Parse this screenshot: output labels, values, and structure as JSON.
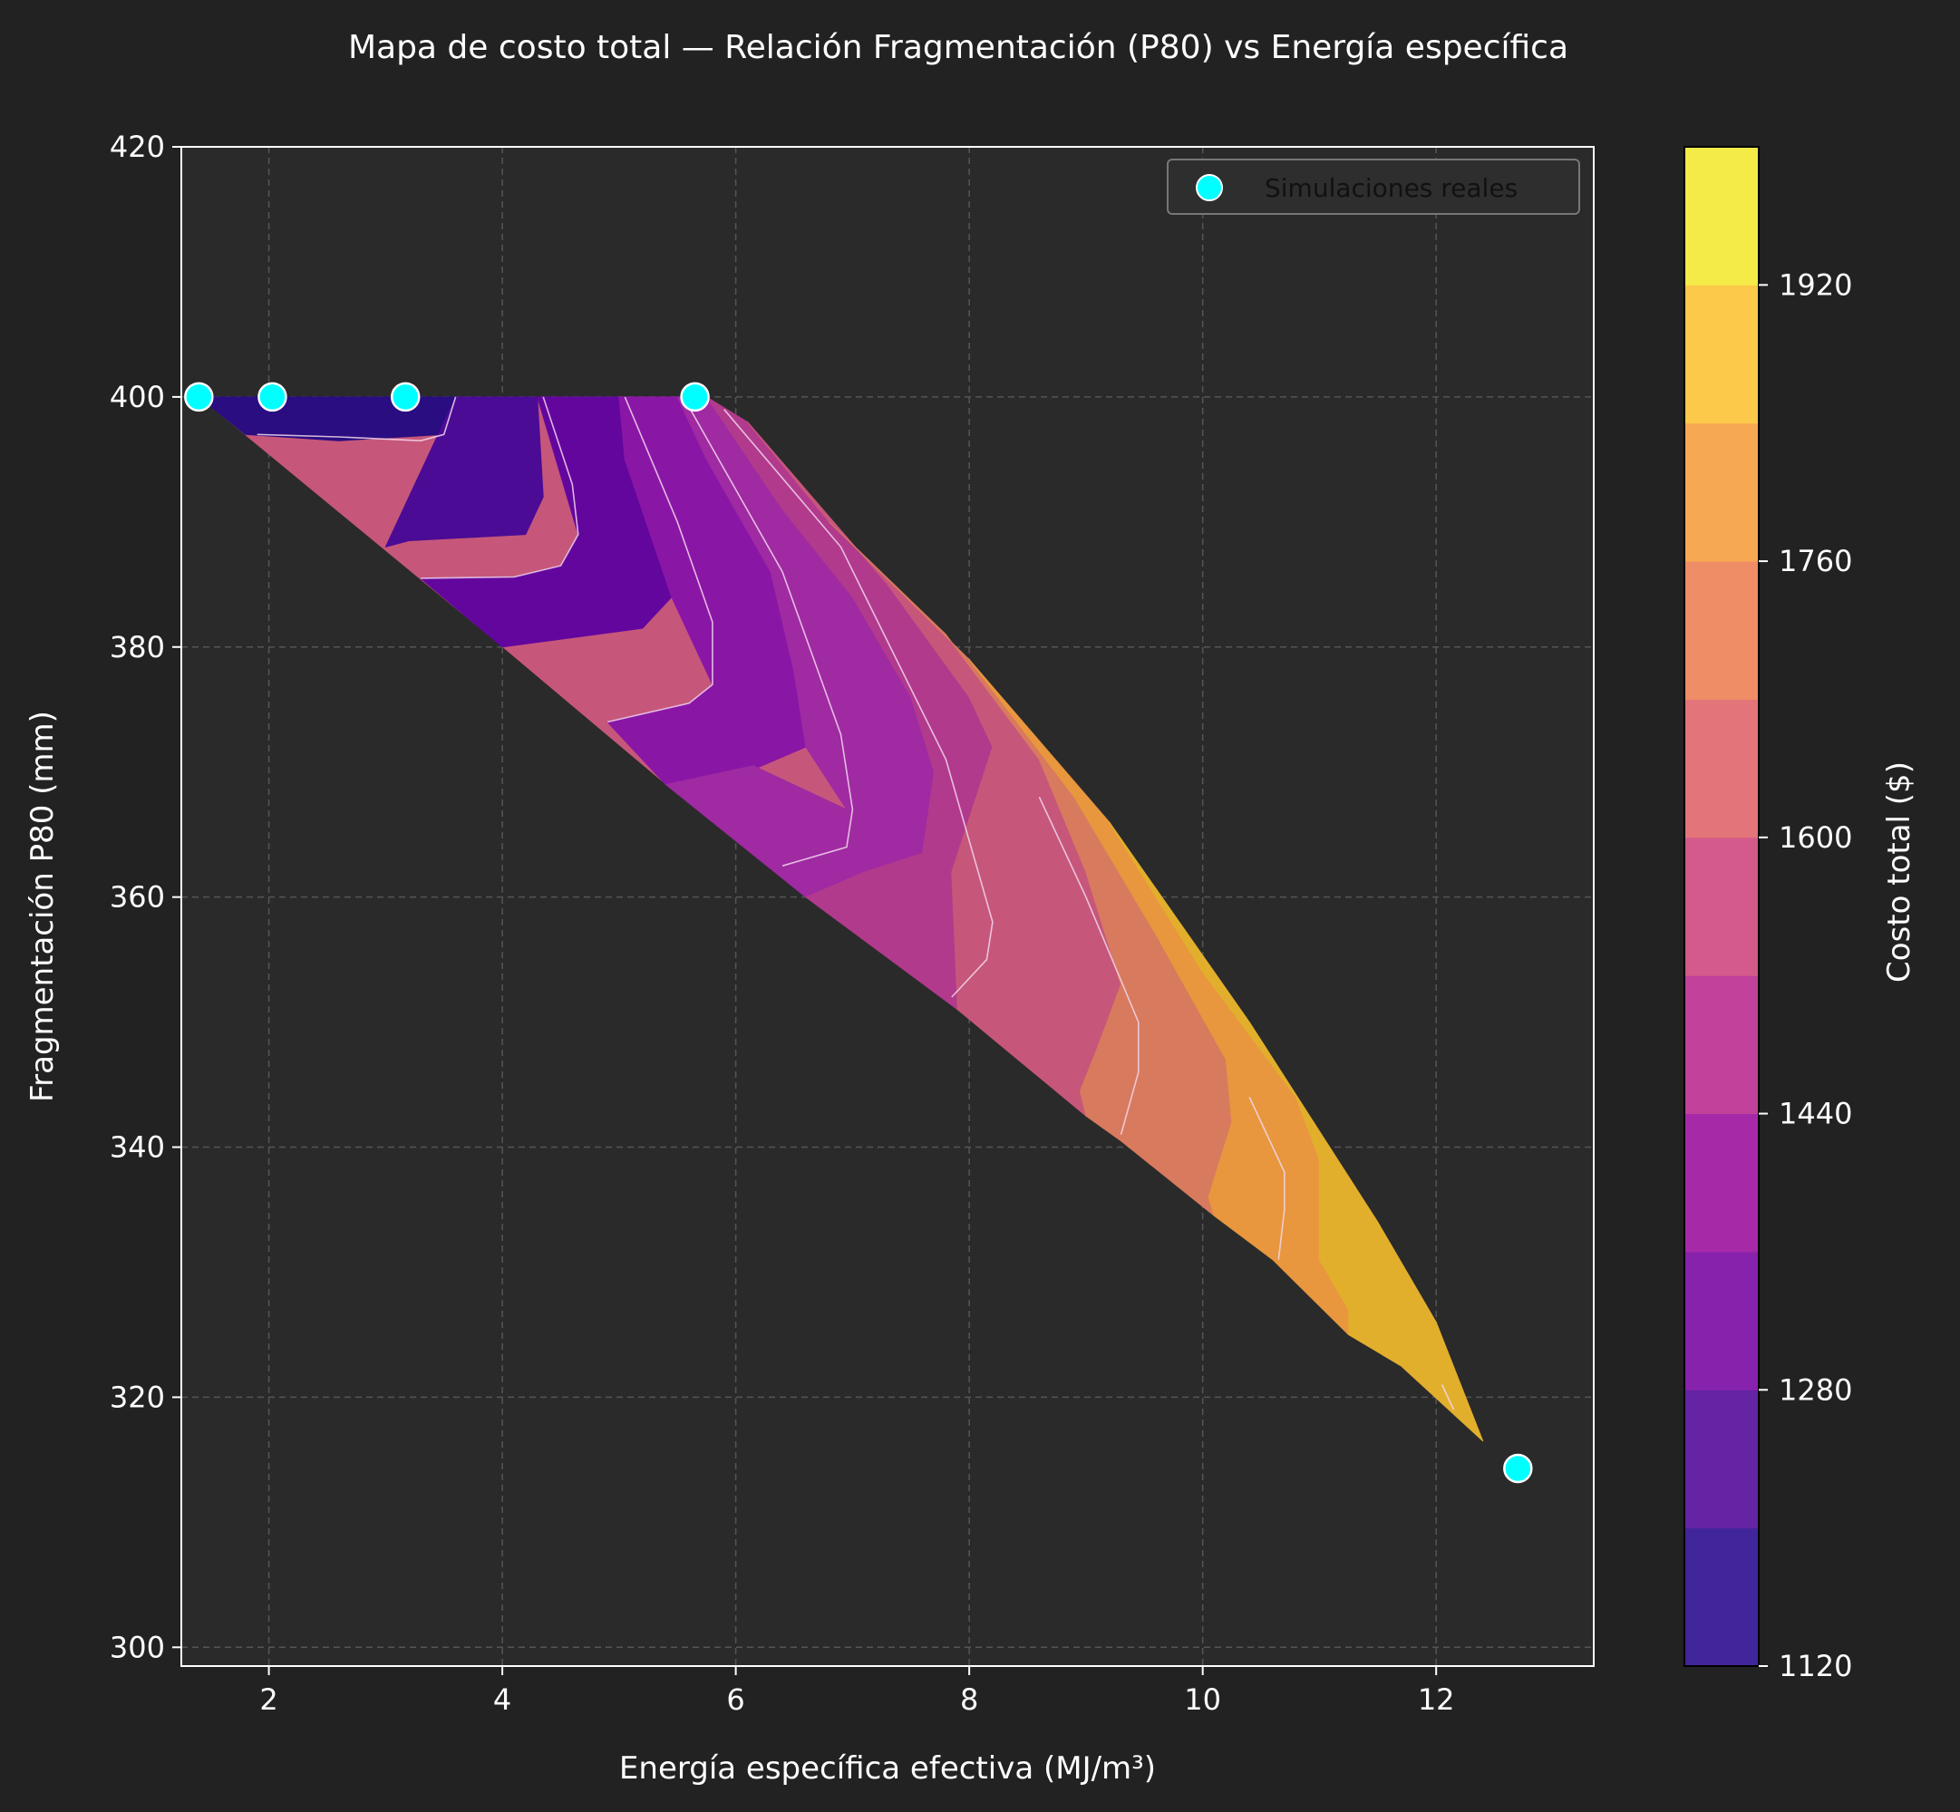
{
  "chart_data": {
    "type": "contourf",
    "title": "Mapa de costo total — Relación Fragmentación (P80) vs Energía específica",
    "xlabel": "Energía específica efectiva (MJ/m³)",
    "ylabel": "Fragmentación P80 (mm)",
    "xlim": [
      1.25,
      13.35
    ],
    "ylim": [
      298.5,
      420
    ],
    "xticks": [
      2,
      4,
      6,
      8,
      10,
      12
    ],
    "yticks": [
      300,
      320,
      340,
      360,
      380,
      400,
      420
    ],
    "grid": true,
    "legend": {
      "position": "top-right",
      "entries": [
        {
          "label": "Simulaciones reales",
          "color": "#00ffff"
        }
      ]
    },
    "colorbar": {
      "label": "Costo total ($)",
      "ticks": [
        1120,
        1280,
        1440,
        1600,
        1760,
        1920
      ],
      "min": 1120,
      "max": 2000,
      "levels": [
        1120,
        1200,
        1280,
        1360,
        1440,
        1520,
        1600,
        1680,
        1760,
        1840,
        1920,
        2000
      ],
      "colors": [
        "#41259a",
        "#6424a4",
        "#8722ac",
        "#a62aa8",
        "#c2419b",
        "#d35a8a",
        "#e3757a",
        "#ef8d66",
        "#f7a853",
        "#fcc94a",
        "#f4ea48"
      ]
    },
    "region": {
      "upper": [
        [
          1.4,
          400
        ],
        [
          5.65,
          400
        ],
        [
          5.9,
          398
        ],
        [
          6.6,
          391
        ],
        [
          7.5,
          382
        ],
        [
          8.3,
          373
        ],
        [
          8.9,
          364
        ],
        [
          9.5,
          354
        ],
        [
          10.2,
          344
        ],
        [
          11.0,
          334
        ],
        [
          11.8,
          324
        ],
        [
          12.4,
          316.5
        ]
      ],
      "lower": [
        [
          1.4,
          400
        ],
        [
          4.0,
          380
        ],
        [
          5.4,
          369
        ],
        [
          6.6,
          360
        ],
        [
          7.9,
          351
        ],
        [
          9.3,
          340.5
        ],
        [
          10.6,
          331
        ],
        [
          11.7,
          322.5
        ],
        [
          12.4,
          316.5
        ]
      ]
    },
    "cost_bands": [
      {
        "level": 1120,
        "color": "#2a0d80",
        "pts": [
          [
            1.4,
            400
          ],
          [
            3.6,
            400
          ],
          [
            3.5,
            397
          ],
          [
            2.6,
            396.5
          ],
          [
            1.8,
            397
          ],
          [
            1.6,
            398.5
          ]
        ]
      },
      {
        "level": 1200,
        "color": "#4b0b95",
        "pts": [
          [
            3.6,
            400
          ],
          [
            4.3,
            400
          ],
          [
            4.35,
            392
          ],
          [
            4.2,
            389
          ],
          [
            3.2,
            388.5
          ],
          [
            3.0,
            388
          ]
        ]
      },
      {
        "level": 1280,
        "color": "#63069e",
        "pts": [
          [
            4.3,
            400
          ],
          [
            5.0,
            400
          ],
          [
            5.05,
            395
          ],
          [
            5.35,
            390
          ],
          [
            5.45,
            384
          ],
          [
            5.2,
            381.5
          ],
          [
            4.0,
            380
          ],
          [
            3.3,
            385.5
          ],
          [
            4.1,
            385.6
          ],
          [
            4.5,
            386.5
          ],
          [
            4.65,
            389
          ]
        ]
      },
      {
        "level": 1360,
        "color": "#8a16a6",
        "pts": [
          [
            5.0,
            400
          ],
          [
            5.5,
            400
          ],
          [
            5.75,
            395
          ],
          [
            6.3,
            386
          ],
          [
            6.5,
            378
          ],
          [
            6.6,
            372
          ],
          [
            6.1,
            370
          ],
          [
            5.4,
            369
          ],
          [
            4.9,
            374
          ],
          [
            5.6,
            375.5
          ],
          [
            5.8,
            377
          ],
          [
            5.45,
            384
          ],
          [
            5.05,
            395
          ]
        ]
      },
      {
        "level": 1440,
        "color": "#9f2aa2",
        "pts": [
          [
            5.5,
            400
          ],
          [
            5.75,
            400
          ],
          [
            6.4,
            391
          ],
          [
            7.0,
            384
          ],
          [
            7.5,
            376
          ],
          [
            7.7,
            370
          ],
          [
            7.6,
            363.5
          ],
          [
            7.1,
            362
          ],
          [
            6.6,
            360
          ],
          [
            5.4,
            369
          ],
          [
            6.15,
            370.5
          ],
          [
            6.95,
            367
          ],
          [
            6.6,
            372
          ],
          [
            6.5,
            378
          ],
          [
            6.3,
            386
          ],
          [
            5.75,
            395
          ]
        ]
      },
      {
        "level": 1520,
        "color": "#b13a8d",
        "pts": [
          [
            5.75,
            400
          ],
          [
            6.1,
            398
          ],
          [
            7.3,
            385
          ],
          [
            8.0,
            376
          ],
          [
            8.2,
            372
          ],
          [
            7.85,
            362
          ],
          [
            7.9,
            351
          ],
          [
            6.6,
            360
          ],
          [
            7.1,
            362
          ],
          [
            7.6,
            363.5
          ],
          [
            7.7,
            370
          ],
          [
            7.5,
            376
          ],
          [
            7.0,
            384
          ],
          [
            6.4,
            391
          ]
        ]
      },
      {
        "level": 1600,
        "color": "#c6577a",
        "pts": [
          [
            6.1,
            398
          ],
          [
            6.8,
            390
          ],
          [
            7.8,
            381
          ],
          [
            8.6,
            371
          ],
          [
            9.0,
            362
          ],
          [
            9.3,
            353
          ],
          [
            9.1,
            348
          ],
          [
            8.95,
            344.5
          ],
          [
            9.0,
            342.5
          ],
          [
            7.9,
            351
          ],
          [
            7.85,
            362
          ],
          [
            8.2,
            372
          ],
          [
            8.0,
            376
          ],
          [
            7.3,
            385
          ]
        ]
      },
      {
        "level": 1680,
        "color": "#d87a5e",
        "pts": [
          [
            6.8,
            390
          ],
          [
            8.0,
            379
          ],
          [
            8.9,
            368
          ],
          [
            9.6,
            357
          ],
          [
            10.2,
            347
          ],
          [
            10.25,
            342
          ],
          [
            10.05,
            336
          ],
          [
            10.1,
            334.5
          ],
          [
            9.3,
            340.5
          ],
          [
            9.0,
            342.5
          ],
          [
            8.95,
            344.5
          ],
          [
            9.1,
            348
          ],
          [
            9.3,
            353
          ],
          [
            9.0,
            362
          ],
          [
            8.6,
            371
          ],
          [
            7.8,
            381
          ]
        ]
      },
      {
        "level": 1760,
        "color": "#e8973e",
        "pts": [
          [
            8.0,
            379
          ],
          [
            9.2,
            366
          ],
          [
            10.0,
            354
          ],
          [
            10.8,
            344
          ],
          [
            11.0,
            339
          ],
          [
            11.0,
            331
          ],
          [
            11.25,
            327
          ],
          [
            11.25,
            325
          ],
          [
            10.6,
            331
          ],
          [
            10.1,
            334.5
          ],
          [
            10.05,
            336
          ],
          [
            10.25,
            342
          ],
          [
            10.2,
            347
          ],
          [
            9.6,
            357
          ],
          [
            8.9,
            368
          ]
        ]
      },
      {
        "level": 1840,
        "color": "#e2af2d",
        "pts": [
          [
            9.2,
            366
          ],
          [
            10.4,
            350
          ],
          [
            11.5,
            334
          ],
          [
            12.0,
            326
          ],
          [
            12.4,
            316.5
          ],
          [
            11.7,
            322.5
          ],
          [
            11.25,
            325
          ],
          [
            11.25,
            327
          ],
          [
            11.0,
            331
          ],
          [
            11.0,
            339
          ],
          [
            10.8,
            344
          ],
          [
            10.0,
            354
          ]
        ]
      }
    ],
    "contour_lines": [
      [
        [
          1.9,
          397
        ],
        [
          2.6,
          396.8
        ],
        [
          3.3,
          396.5
        ],
        [
          3.5,
          397
        ],
        [
          3.6,
          400
        ]
      ],
      [
        [
          3.3,
          385.5
        ],
        [
          4.1,
          385.6
        ],
        [
          4.5,
          386.5
        ],
        [
          4.65,
          389
        ],
        [
          4.6,
          393
        ],
        [
          4.35,
          400
        ]
      ],
      [
        [
          4.9,
          374
        ],
        [
          5.6,
          375.5
        ],
        [
          5.8,
          377
        ],
        [
          5.8,
          382
        ],
        [
          5.5,
          390
        ],
        [
          5.05,
          400
        ]
      ],
      [
        [
          6.4,
          362.5
        ],
        [
          6.95,
          364
        ],
        [
          7.0,
          367
        ],
        [
          6.9,
          373
        ],
        [
          6.4,
          386
        ],
        [
          5.55,
          400
        ]
      ],
      [
        [
          7.85,
          352
        ],
        [
          8.15,
          355
        ],
        [
          8.2,
          358
        ],
        [
          7.8,
          371
        ],
        [
          6.9,
          388
        ],
        [
          5.9,
          399
        ]
      ],
      [
        [
          9.3,
          341
        ],
        [
          9.45,
          346
        ],
        [
          9.45,
          350
        ],
        [
          9.0,
          360
        ],
        [
          8.6,
          368
        ]
      ],
      [
        [
          10.65,
          331
        ],
        [
          10.7,
          335
        ],
        [
          10.7,
          338
        ],
        [
          10.4,
          344
        ]
      ],
      [
        [
          12.15,
          319
        ],
        [
          12.05,
          321
        ]
      ]
    ],
    "scatter": {
      "label": "Simulaciones reales",
      "points": [
        [
          1.4,
          400
        ],
        [
          2.03,
          400
        ],
        [
          3.17,
          400
        ],
        [
          5.65,
          400
        ],
        [
          12.7,
          314.3
        ]
      ]
    }
  }
}
